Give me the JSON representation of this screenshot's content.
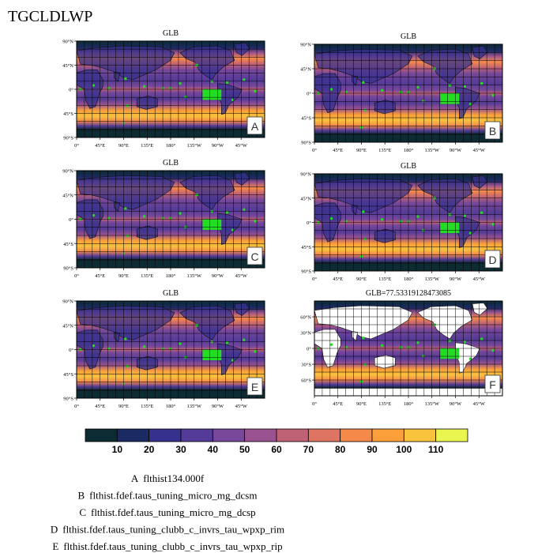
{
  "title": "TGCLDLWP",
  "colorbar": {
    "colors": [
      "#0d2b33",
      "#1b2a63",
      "#37318e",
      "#553b98",
      "#77489a",
      "#9a5390",
      "#c06276",
      "#e07462",
      "#f5894a",
      "#fb9f3a",
      "#f8c23d",
      "#eaf54f"
    ],
    "tick_labels": [
      "10",
      "20",
      "30",
      "40",
      "50",
      "60",
      "70",
      "80",
      "90",
      "100",
      "110"
    ]
  },
  "chart_data": [
    {
      "type": "heatmap",
      "panel": "A",
      "title": "GLB",
      "x_ticks": [
        "0°",
        "45°E",
        "90°E",
        "135°E",
        "180°",
        "135°W",
        "90°W",
        "45°W"
      ],
      "y_ticks": [
        "90°N",
        "45°N",
        "0°",
        "45°S",
        "90°S"
      ],
      "xlim": [
        0,
        360
      ],
      "ylim": [
        -90,
        90
      ],
      "grid": true
    },
    {
      "type": "heatmap",
      "panel": "B",
      "title": "GLB",
      "x_ticks": [
        "0°",
        "45°E",
        "90°E",
        "135°E",
        "180°",
        "135°W",
        "90°W",
        "45°W"
      ],
      "y_ticks": [
        "90°N",
        "45°N",
        "0°",
        "45°S",
        "90°S"
      ],
      "xlim": [
        0,
        360
      ],
      "ylim": [
        -90,
        90
      ],
      "grid": true
    },
    {
      "type": "heatmap",
      "panel": "C",
      "title": "GLB",
      "x_ticks": [
        "0°",
        "45°E",
        "90°E",
        "135°E",
        "180°",
        "135°W",
        "90°W",
        "45°W"
      ],
      "y_ticks": [
        "90°N",
        "45°N",
        "0°",
        "45°S",
        "90°S"
      ],
      "xlim": [
        0,
        360
      ],
      "ylim": [
        -90,
        90
      ],
      "grid": true
    },
    {
      "type": "heatmap",
      "panel": "D",
      "title": "GLB",
      "x_ticks": [
        "0°",
        "45°E",
        "90°E",
        "135°E",
        "180°",
        "135°W",
        "90°W",
        "45°W"
      ],
      "y_ticks": [
        "90°N",
        "45°N",
        "0°",
        "45°S",
        "90°S"
      ],
      "xlim": [
        0,
        360
      ],
      "ylim": [
        -90,
        90
      ],
      "grid": true
    },
    {
      "type": "heatmap",
      "panel": "E",
      "title": "GLB",
      "x_ticks": [
        "0°",
        "45°E",
        "90°E",
        "135°E",
        "180°",
        "135°W",
        "90°W",
        "45°W"
      ],
      "y_ticks": [
        "90°N",
        "45°N",
        "0°",
        "45°S",
        "90°S"
      ],
      "xlim": [
        0,
        360
      ],
      "ylim": [
        -90,
        90
      ],
      "grid": true
    },
    {
      "type": "heatmap",
      "panel": "F",
      "title": "GLB=77.53319128473085",
      "x_ticks": [
        "0°",
        "45°E",
        "90°E",
        "135°E",
        "180°",
        "135°W",
        "90°W",
        "45°W"
      ],
      "y_ticks": [
        "60°N",
        "30°N",
        "0°",
        "30°S",
        "60°S"
      ],
      "xlim": [
        0,
        360
      ],
      "ylim": [
        -90,
        90
      ],
      "grid": true
    }
  ],
  "legend": [
    {
      "letter": "A",
      "text": "flthist134.000f"
    },
    {
      "letter": "B",
      "text": "flthist.fdef.taus_tuning_micro_mg_dcsm"
    },
    {
      "letter": "C",
      "text": "flthist.fdef.taus_tuning_micro_mg_dcsp"
    },
    {
      "letter": "D",
      "text": "flthist.fdef.taus_tuning_clubb_c_invrs_tau_wpxp_rim"
    },
    {
      "letter": "E",
      "text": "flthist.fdef.taus_tuning_clubb_c_invrs_tau_wpxp_rip"
    }
  ]
}
